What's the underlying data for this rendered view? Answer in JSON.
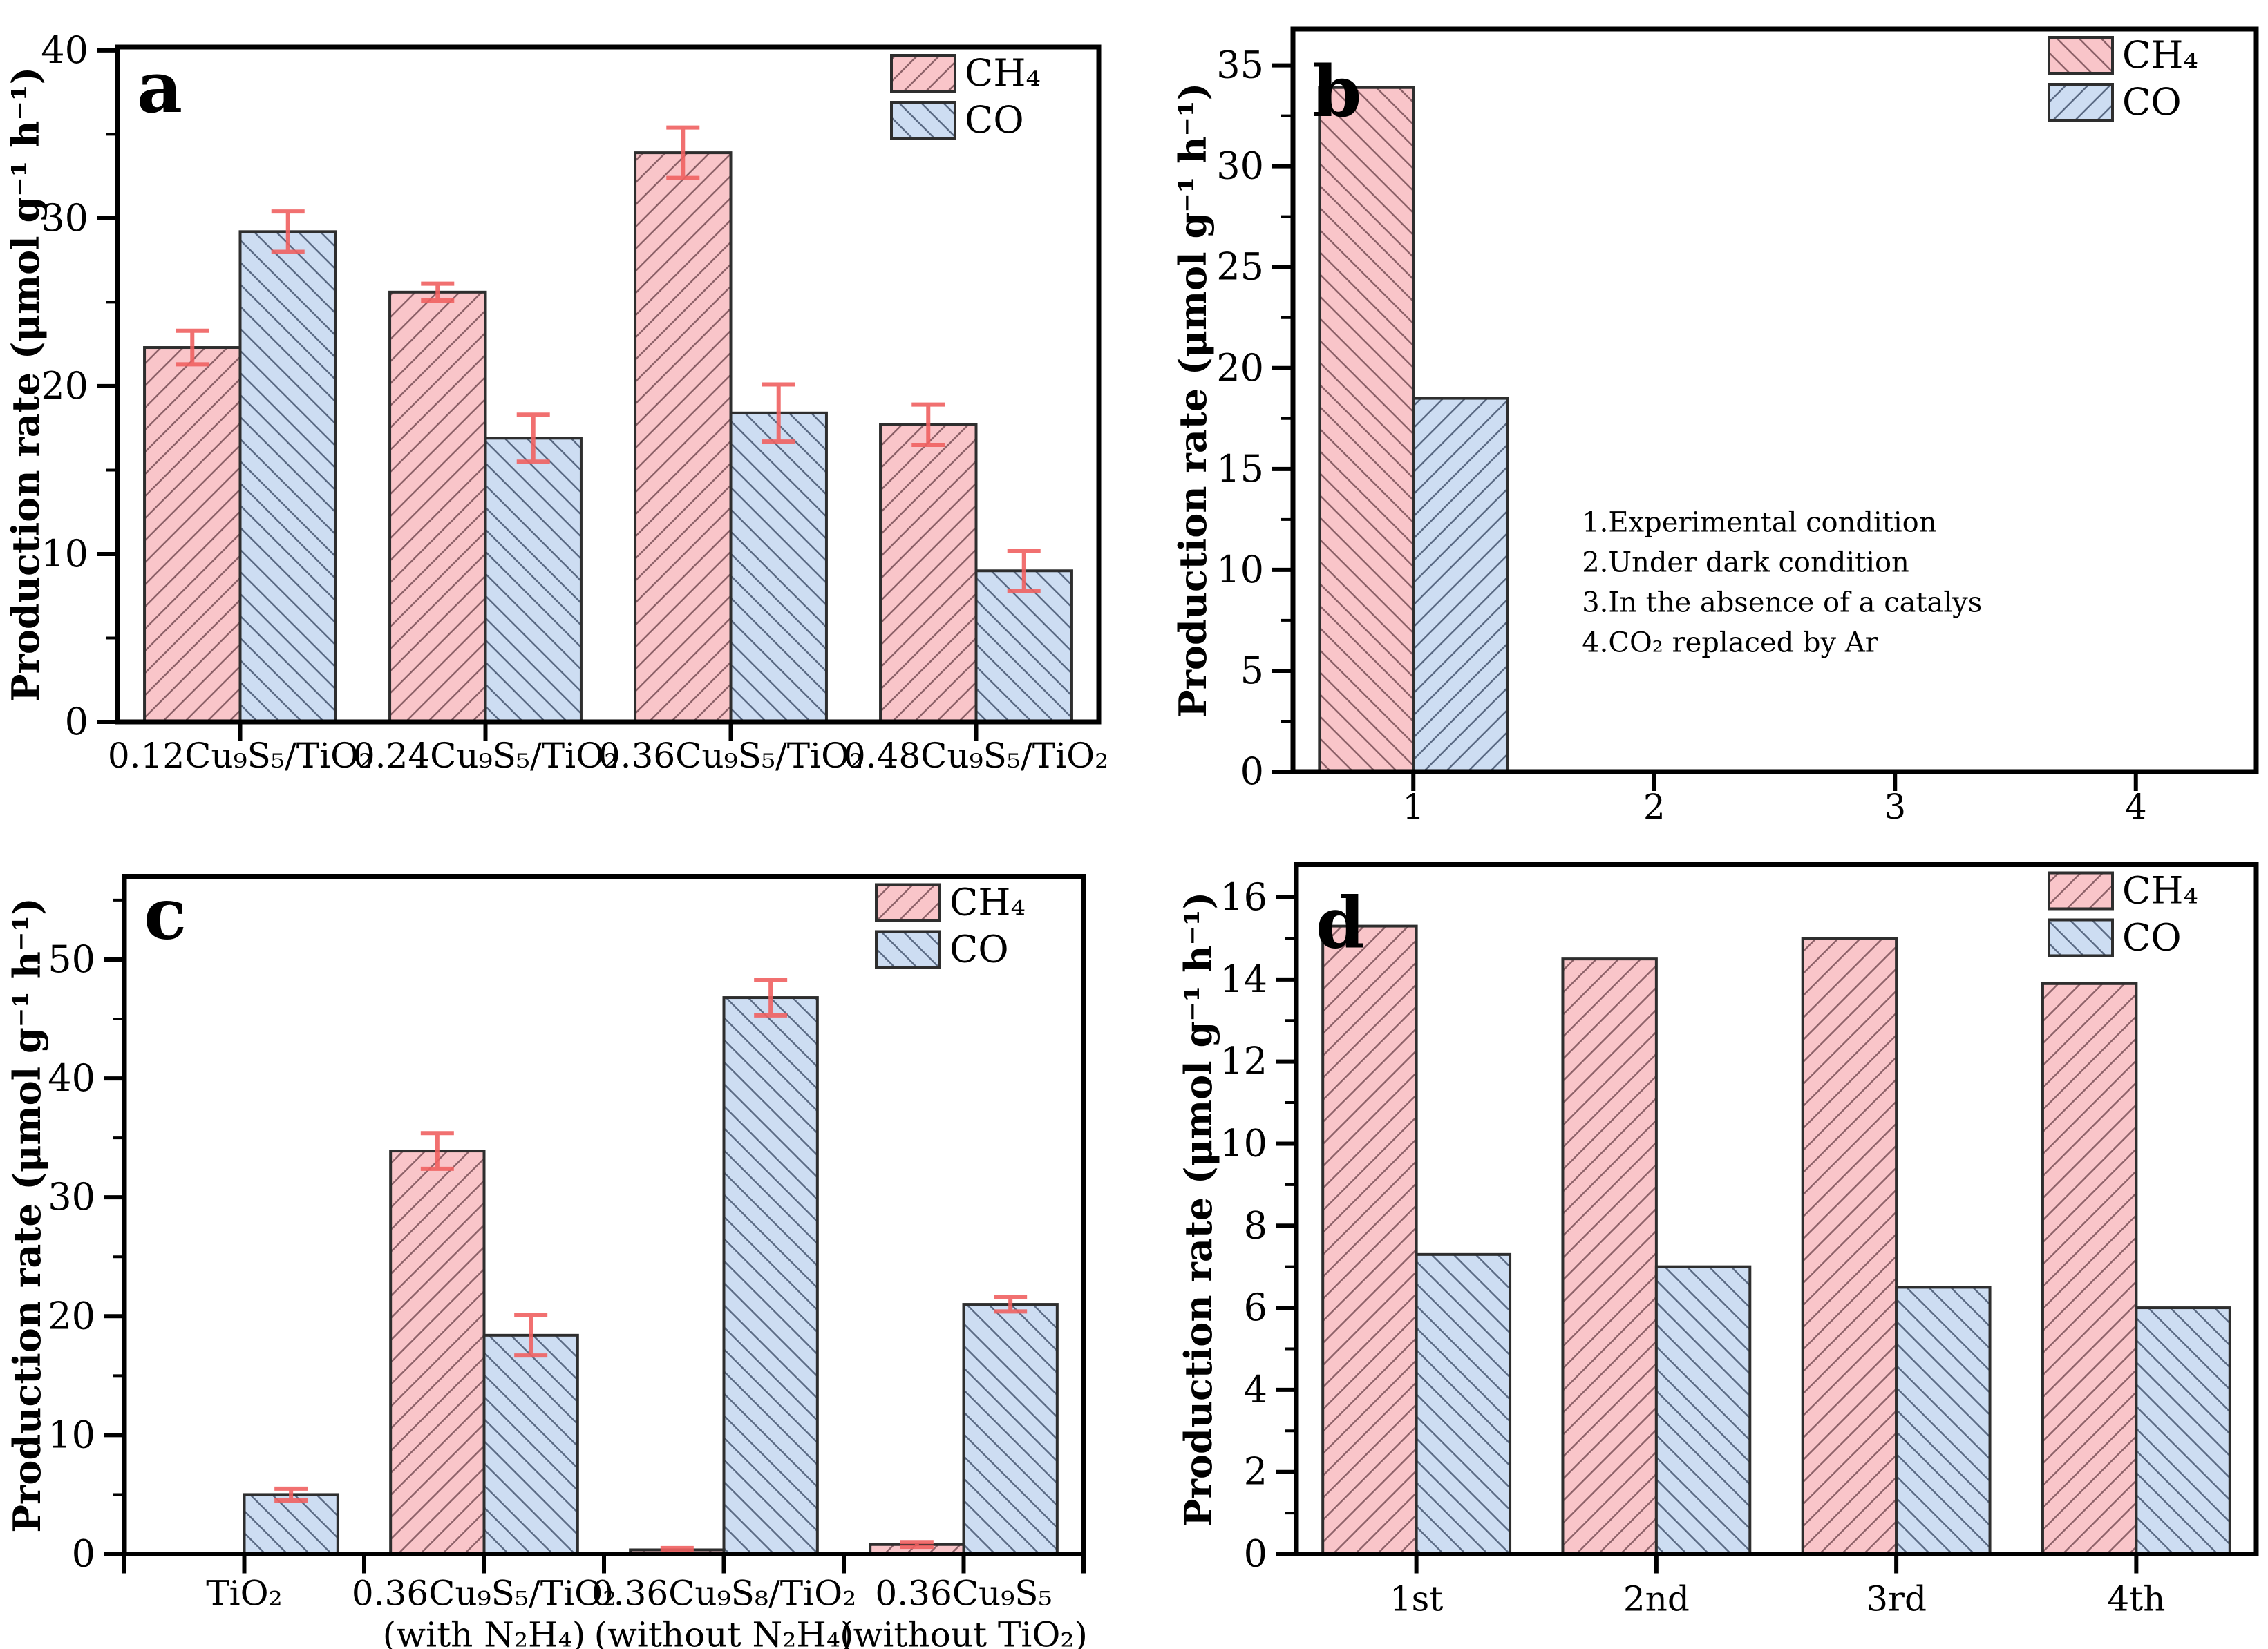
{
  "styles": {
    "background": "#ffffff",
    "axis_color": "#000000",
    "bar_edge": "#2e2e2e",
    "ch4_fill": "#f9c5c9",
    "ch4_hatch_line": "#8d6168",
    "co_fill": "#cdddf2",
    "co_hatch_line": "#5a6a84",
    "error_color": "#ef6161"
  },
  "chart_data": [
    {
      "panel_letter": "a",
      "type": "bar",
      "ylabel": "Production rate (μmol g⁻¹ h⁻¹)",
      "ylim": [
        0,
        40.2
      ],
      "y_major_step": 10,
      "y_minor_step": 5,
      "grid": false,
      "legend_position": "top-right-inside",
      "categories": [
        "0.12Cu₉S₅/TiO₂",
        "0.24Cu₉S₅/TiO₂",
        "0.36Cu₉S₅/TiO₂",
        "0.48Cu₉S₅/TiO₂"
      ],
      "series": [
        {
          "name": "CH₄",
          "hatch": "/",
          "values": [
            22.3,
            25.6,
            33.9,
            17.7
          ],
          "errors": [
            1.0,
            0.5,
            1.5,
            1.2
          ]
        },
        {
          "name": "CO",
          "hatch": "\\",
          "values": [
            29.2,
            16.9,
            18.4,
            9.0
          ],
          "errors": [
            1.2,
            1.4,
            1.7,
            1.2
          ]
        }
      ],
      "annotations": []
    },
    {
      "panel_letter": "b",
      "type": "bar",
      "ylabel": "Production rate (μmol g⁻¹ h⁻¹)",
      "ylim": [
        0,
        36.8
      ],
      "y_major_step": 5,
      "y_minor_step": 2.5,
      "grid": false,
      "legend_position": "top-right-inside",
      "categories": [
        "1",
        "2",
        "3",
        "4"
      ],
      "series": [
        {
          "name": "CH₄",
          "hatch": "\\",
          "values": [
            33.9,
            null,
            null,
            null
          ],
          "errors": null
        },
        {
          "name": "CO",
          "hatch": "/",
          "values": [
            18.5,
            null,
            null,
            null
          ],
          "errors": null
        }
      ],
      "annotations": [
        "1.Experimental condition",
        "2.Under dark condition",
        "3.In the absence of a catalys",
        "4.CO₂ replaced by Ar"
      ]
    },
    {
      "panel_letter": "c",
      "type": "bar",
      "ylabel": "Production rate (μmol g⁻¹ h⁻¹)",
      "ylim": [
        0,
        57
      ],
      "y_major_step": 10,
      "y_minor_step": 5,
      "grid": false,
      "legend_position": "top-right-inside",
      "categories": [
        "TiO₂",
        "0.36Cu₉S₅/TiO₂",
        "0.36Cu₉S₈/TiO₂",
        "0.36Cu₉S₅"
      ],
      "categories_line2": [
        "",
        "(with N₂H₄)",
        "(without N₂H₄)",
        "(without TiO₂)"
      ],
      "series": [
        {
          "name": "CH₄",
          "hatch": "/",
          "values": [
            0,
            33.9,
            0.35,
            0.8
          ],
          "errors": [
            0,
            1.5,
            0.15,
            0.2
          ]
        },
        {
          "name": "CO",
          "hatch": "\\",
          "values": [
            5.0,
            18.4,
            46.8,
            21.0
          ],
          "errors": [
            0.5,
            1.7,
            1.5,
            0.6
          ]
        }
      ],
      "annotations": []
    },
    {
      "panel_letter": "d",
      "type": "bar",
      "ylabel": "Production rate (μmol g⁻¹ h⁻¹)",
      "ylim": [
        0,
        16.8
      ],
      "y_major_step": 2,
      "y_minor_step": 1,
      "grid": false,
      "legend_position": "top-right-inside",
      "categories": [
        "1st",
        "2nd",
        "3rd",
        "4th"
      ],
      "series": [
        {
          "name": "CH₄",
          "hatch": "/",
          "values": [
            15.3,
            14.5,
            15.0,
            13.9
          ],
          "errors": null
        },
        {
          "name": "CO",
          "hatch": "\\",
          "values": [
            7.3,
            7.0,
            6.5,
            6.0
          ],
          "errors": null
        }
      ],
      "annotations": []
    }
  ]
}
